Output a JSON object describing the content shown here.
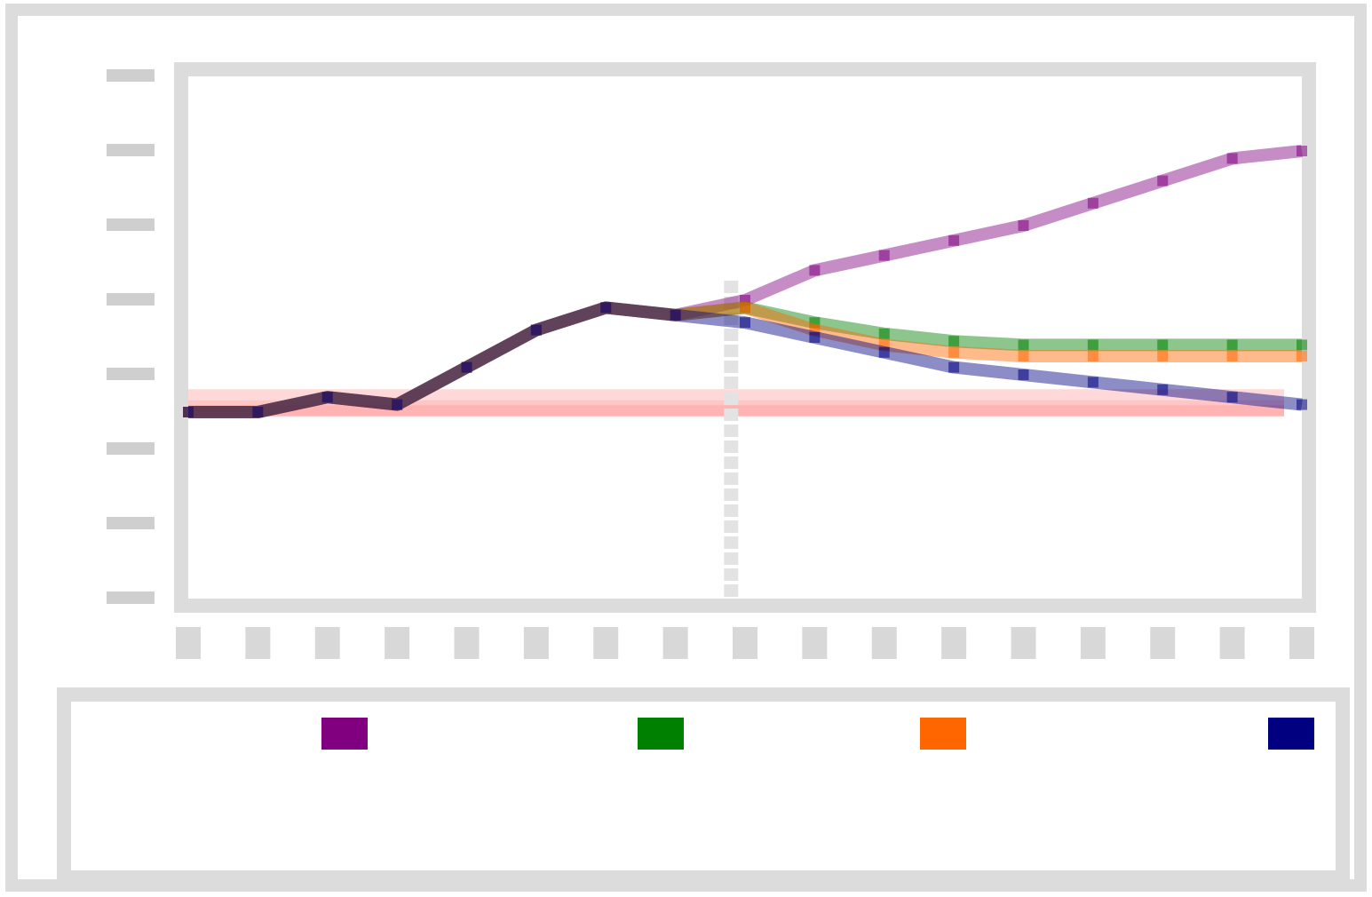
{
  "chart_data": {
    "type": "line",
    "title": "",
    "xlabel": "",
    "ylabel": "",
    "categories": [
      "",
      "",
      "",
      "",
      "",
      "",
      "",
      "",
      "",
      "",
      "",
      "",
      "",
      "",
      "",
      "",
      ""
    ],
    "x": [
      0,
      1,
      2,
      3,
      4,
      5,
      6,
      7,
      8,
      9,
      10,
      11,
      12,
      13,
      14,
      15,
      16
    ],
    "xlim": [
      0,
      16
    ],
    "ylim": [
      0,
      7
    ],
    "y_ticks": [
      0,
      1,
      2,
      3,
      4,
      5,
      6,
      7
    ],
    "y_tick_labels": [
      "",
      "",
      "",
      "",
      "",
      "",
      "",
      ""
    ],
    "grid": false,
    "legend_position": "bottom",
    "vertical_marker": {
      "x": 7.8,
      "style": "dashed",
      "color": "#e3e3e3"
    },
    "annotation": {
      "text": "",
      "x": 8.5,
      "y": 5.2
    },
    "series": [
      {
        "color": "#800080",
        "values": [
          2.5,
          2.5,
          2.7,
          2.6,
          3.1,
          3.6,
          3.9,
          3.8,
          4.0,
          4.4,
          4.6,
          4.8,
          5.0,
          5.3,
          5.6,
          5.9,
          6.0
        ]
      },
      {
        "color": "#008000",
        "values": [
          2.5,
          2.5,
          2.7,
          2.6,
          3.1,
          3.6,
          3.9,
          3.8,
          3.9,
          3.7,
          3.55,
          3.45,
          3.4,
          3.4,
          3.4,
          3.4,
          3.4
        ]
      },
      {
        "color": "#ff6600",
        "values": [
          2.5,
          2.5,
          2.7,
          2.6,
          3.1,
          3.6,
          3.9,
          3.8,
          3.9,
          3.6,
          3.4,
          3.3,
          3.25,
          3.25,
          3.25,
          3.25,
          3.25
        ]
      },
      {
        "color": "#000080",
        "values": [
          2.5,
          2.5,
          2.7,
          2.6,
          3.1,
          3.6,
          3.9,
          3.8,
          3.7,
          3.5,
          3.3,
          3.1,
          3.0,
          2.9,
          2.8,
          2.7,
          2.6
        ]
      },
      {
        "color": "#ff9999",
        "values": [
          2.55,
          2.55,
          2.55,
          2.55,
          2.55,
          2.55,
          2.55,
          2.55,
          2.55,
          2.55,
          2.55,
          2.55,
          2.55,
          2.55,
          2.55,
          2.55,
          2.55
        ]
      },
      {
        "color": "#ffcccc",
        "values": [
          2.7,
          2.7,
          2.7,
          2.7,
          2.7,
          2.7,
          2.7,
          2.7,
          2.7,
          2.7,
          2.7,
          2.7,
          2.7,
          2.7,
          2.7,
          2.7,
          2.7
        ]
      }
    ]
  },
  "legend": {
    "items": [
      {
        "label": "",
        "color": "#800080"
      },
      {
        "label": "",
        "color": "#008000"
      },
      {
        "label": "",
        "color": "#ff6600"
      },
      {
        "label": "",
        "color": "#000080"
      }
    ]
  }
}
